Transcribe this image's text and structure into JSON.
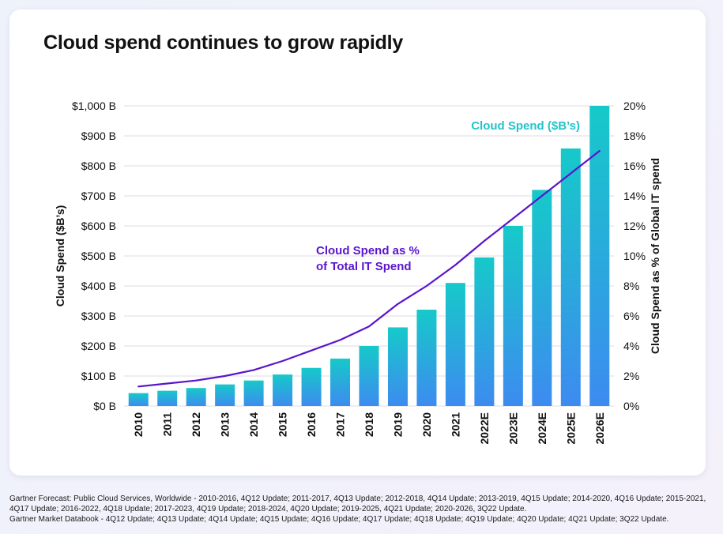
{
  "title": "Cloud spend continues to grow rapidly",
  "chart_data": {
    "type": "bar",
    "title": "Cloud spend continues to grow rapidly",
    "categories": [
      "2010",
      "2011",
      "2012",
      "2013",
      "2014",
      "2015",
      "2016",
      "2017",
      "2018",
      "2019",
      "2020",
      "2021",
      "2022E",
      "2023E",
      "2024E",
      "2025E",
      "2026E"
    ],
    "series": [
      {
        "name": "Cloud Spend ($B’s)",
        "type": "bar",
        "axis": "left",
        "values": [
          43,
          51,
          60,
          72,
          85,
          105,
          127,
          158,
          200,
          262,
          321,
          410,
          495,
          600,
          720,
          858,
          1000
        ]
      },
      {
        "name": "Cloud Spend as % of Total IT Spend",
        "label_lines": [
          "Cloud Spend as %",
          "of Total IT Spend"
        ],
        "type": "line",
        "axis": "right",
        "values": [
          1.3,
          1.5,
          1.7,
          2.0,
          2.4,
          3.0,
          3.7,
          4.4,
          5.3,
          6.8,
          8.0,
          9.4,
          11.0,
          12.5,
          14.0,
          15.5,
          17.0
        ]
      }
    ],
    "ylabel": "Cloud Spend ($B’s)",
    "y2label": "Cloud Spend as % of Global IT spend",
    "ylim": [
      0,
      1000
    ],
    "y2lim": [
      0,
      20
    ],
    "yticks": [
      "$0 B",
      "$100 B",
      "$200 B",
      "$300 B",
      "$400 B",
      "$500 B",
      "$600 B",
      "$700 B",
      "$800 B",
      "$900 B",
      "$1,000 B"
    ],
    "y2ticks": [
      "0%",
      "2%",
      "4%",
      "6%",
      "8%",
      "10%",
      "12%",
      "14%",
      "16%",
      "18%",
      "20%"
    ],
    "grid": true,
    "colors": {
      "bar_top": "#16c9c9",
      "bar_bottom": "#3d8bf0",
      "line": "#5a14cc",
      "bar_label": "#22c4cc",
      "line_label": "#5a14cc",
      "grid": "#dcdce4"
    }
  },
  "footnotes": [
    "Gartner Forecast: Public Cloud Services, Worldwide - 2010-2016, 4Q12 Update; 2011-2017, 4Q13 Update; 2012-2018, 4Q14 Update; 2013-2019, 4Q15 Update; 2014-2020, 4Q16 Update; 2015-2021, 4Q17 Update; 2016-2022, 4Q18 Update; 2017-2023, 4Q19 Update; 2018-2024, 4Q20 Update; 2019-2025, 4Q21 Update; 2020-2026, 3Q22 Update.",
    "Gartner Market Databook - 4Q12 Update; 4Q13 Update; 4Q14 Update; 4Q15 Update; 4Q16 Update; 4Q17 Update; 4Q18 Update; 4Q19 Update; 4Q20 Update; 4Q21 Update;  3Q22 Update."
  ]
}
